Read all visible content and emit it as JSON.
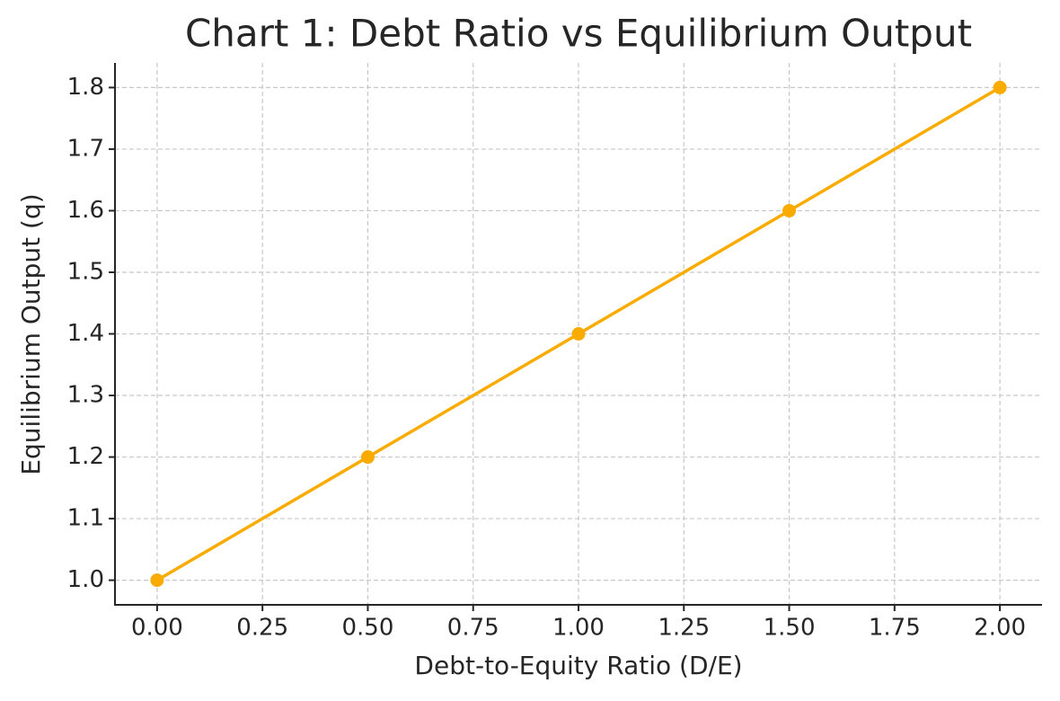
{
  "chart_data": {
    "type": "line",
    "title": "Chart 1: Debt Ratio vs Equilibrium Output",
    "x_label": "Debt-to-Equity Ratio (D/E)",
    "y_label": "Equilibrium Output (q)",
    "x": [
      0,
      0.5,
      1,
      1.5,
      2
    ],
    "series": [
      {
        "name": "Equilibrium Output",
        "color": "#f9ab00",
        "values": [
          1.0,
          1.2,
          1.4,
          1.6,
          1.8
        ]
      }
    ],
    "xlim": [
      -0.1,
      2.1
    ],
    "ylim": [
      0.96,
      1.84
    ],
    "xticks": [
      {
        "value": 0,
        "label": "0.00"
      },
      0.25,
      {
        "value": 0.5,
        "label": "0.50"
      },
      0.75,
      {
        "value": 1,
        "label": "1.00"
      },
      1.25,
      {
        "value": 1.5,
        "label": "1.50"
      },
      1.75,
      {
        "value": 2,
        "label": "2.00"
      }
    ],
    "yticks": [
      {
        "value": 1,
        "label": "1.0"
      },
      1.1,
      1.2,
      1.3,
      1.4,
      1.5,
      1.6,
      1.7,
      1.8
    ],
    "grid": true,
    "markers": true
  }
}
